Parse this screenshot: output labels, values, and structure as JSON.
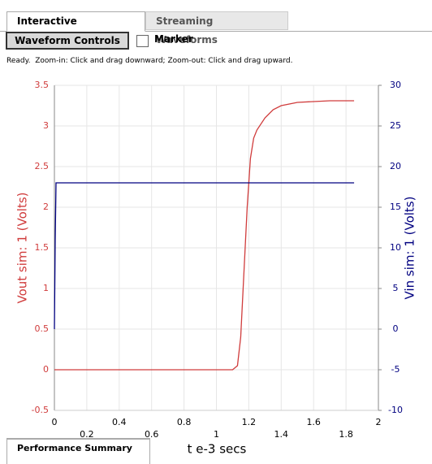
{
  "tabs": [
    "Interactive Waveform",
    "Streaming Waveforms"
  ],
  "button": "Waveform Controls",
  "checkbox": "Marker",
  "status": "Ready.  Zoom-in: Click and drag downward; Zoom-out: Click and drag upward.",
  "bottom_tab": "Performance Summary",
  "chart_data": {
    "type": "line",
    "xlabel": "t e-3 secs",
    "ylabel": "Vout sim: 1 (Volts)",
    "y2label": "Vin sim: 1 (Volts)",
    "xlim": [
      0,
      2
    ],
    "xticks": [
      0,
      0.2,
      0.4,
      0.6,
      0.8,
      1,
      1.2,
      1.4,
      1.6,
      1.8,
      2
    ],
    "ylim": [
      -0.5,
      3.5
    ],
    "yticks": [
      -0.5,
      0,
      0.5,
      1,
      1.5,
      2,
      2.5,
      3,
      3.5
    ],
    "y2lim": [
      -10,
      30
    ],
    "y2ticks": [
      -10,
      -5,
      0,
      5,
      10,
      15,
      20,
      25,
      30
    ],
    "grid": true,
    "series": [
      {
        "name": "Vout",
        "color": "#d03c3c",
        "x": [
          0,
          0.2,
          0.4,
          0.6,
          0.8,
          1.0,
          1.1,
          1.13,
          1.15,
          1.17,
          1.19,
          1.21,
          1.23,
          1.25,
          1.3,
          1.35,
          1.4,
          1.5,
          1.6,
          1.7,
          1.85
        ],
        "values": [
          0,
          0,
          0,
          0,
          0,
          0,
          0,
          0.05,
          0.4,
          1.2,
          2.0,
          2.6,
          2.85,
          2.95,
          3.1,
          3.2,
          3.25,
          3.29,
          3.3,
          3.31,
          3.31
        ]
      },
      {
        "name": "Vin",
        "color": "#000080",
        "axis": "y2",
        "x": [
          0,
          0.005,
          0.01,
          1.85
        ],
        "values": [
          0,
          11,
          18,
          18
        ]
      }
    ]
  }
}
